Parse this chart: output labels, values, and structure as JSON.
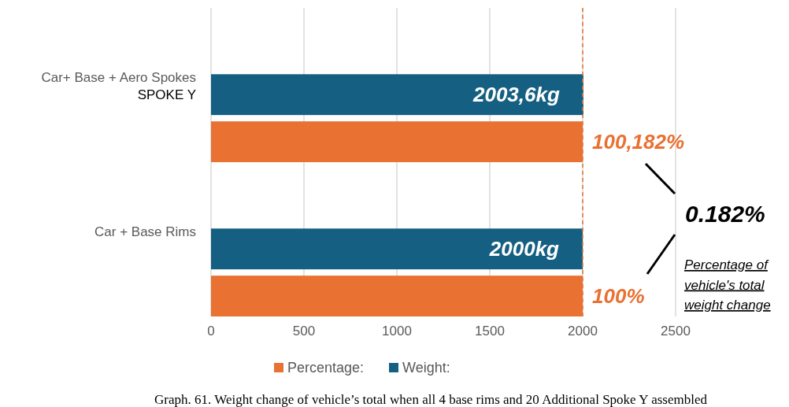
{
  "chart_data": {
    "type": "bar",
    "orientation": "horizontal",
    "categories": [
      "Car+ Base + Aero Spokes\nSPOKE Y",
      "Car + Base Rims"
    ],
    "series": [
      {
        "name": "Percentage:",
        "color": "#e97132",
        "values": [
          2000,
          2000
        ]
      },
      {
        "name": "Weight:",
        "color": "#156082",
        "values": [
          2003.6,
          2000
        ],
        "value_labels": [
          "2003,6kg",
          "2000kg"
        ]
      }
    ],
    "xlim": [
      0,
      2500
    ],
    "xticks": [
      0,
      500,
      1000,
      1500,
      2000,
      2500
    ],
    "grid": "x",
    "legend": "bottom",
    "ref_lines": [
      {
        "axis": "x",
        "value": 2000,
        "color": "#e97132",
        "line_style": "dashed"
      }
    ],
    "annotations": [
      {
        "text": "100,182%",
        "x": 2000,
        "y": "Car+ Base + Aero Spokes\nSPOKE Y"
      },
      {
        "text": "100%",
        "x": 2000,
        "y": "Car + Base Rims"
      },
      "0.182%",
      "Percentage of\nvehicle's total\nweight change",
      "Graph. 61.  Weight change of vehicle’s total when all 4 base rims and 20 Additional Spoke Y assembled"
    ]
  }
}
